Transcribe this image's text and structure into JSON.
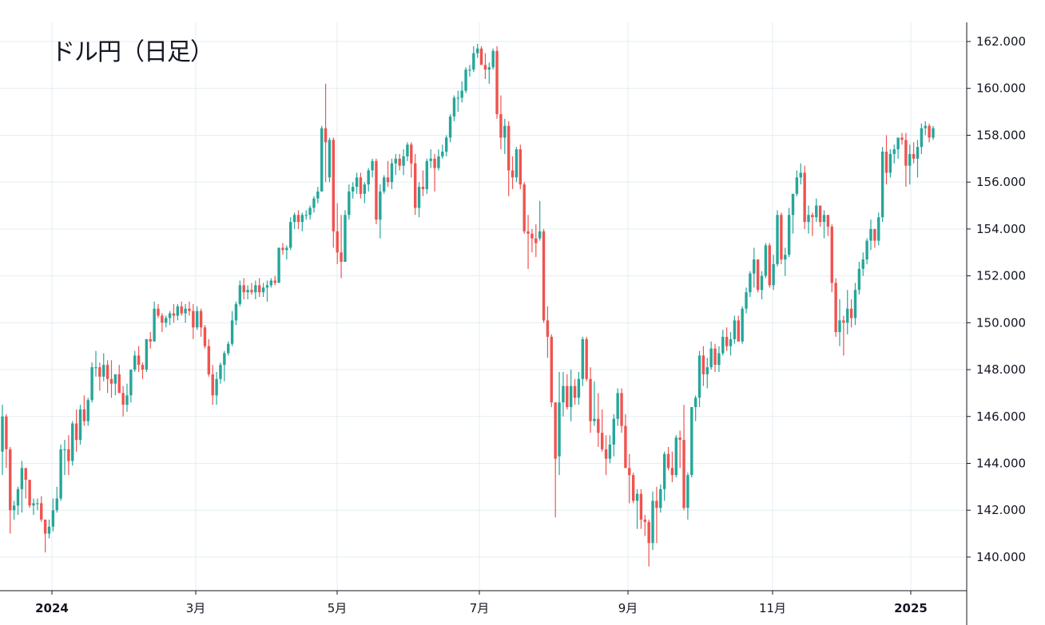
{
  "title": "ドル円（日足）",
  "colors": {
    "up": "#26a69a",
    "down": "#ef5350",
    "grid": "#e3eef2",
    "axis": "#131722"
  },
  "chart_data": {
    "type": "candlestick",
    "title": "ドル円（日足）",
    "ylim": [
      138.6,
      163.0
    ],
    "grid": true,
    "y_axis_position": "right",
    "y_ticks": [
      "140.000",
      "142.000",
      "144.000",
      "146.000",
      "148.000",
      "150.000",
      "152.000",
      "154.000",
      "156.000",
      "158.000",
      "160.000",
      "162.000"
    ],
    "x_ticks": [
      {
        "label": "2024",
        "bold": true
      },
      {
        "label": "3月",
        "bold": false
      },
      {
        "label": "5月",
        "bold": false
      },
      {
        "label": "7月",
        "bold": false
      },
      {
        "label": "9月",
        "bold": false
      },
      {
        "label": "11月",
        "bold": false
      },
      {
        "label": "2025",
        "bold": true
      }
    ],
    "ohlc_fields": [
      "open",
      "high",
      "low",
      "close"
    ],
    "ohlc": [
      [
        144.5,
        146.5,
        143.5,
        146.0
      ],
      [
        146.0,
        146.1,
        143.8,
        144.6
      ],
      [
        144.6,
        144.7,
        141.0,
        142.0
      ],
      [
        142.0,
        142.4,
        141.6,
        142.2
      ],
      [
        142.2,
        143.0,
        141.8,
        142.9
      ],
      [
        142.9,
        144.1,
        141.9,
        143.8
      ],
      [
        143.8,
        143.8,
        142.5,
        143.3
      ],
      [
        143.3,
        143.3,
        142.1,
        142.2
      ],
      [
        142.2,
        142.5,
        141.8,
        142.3
      ],
      [
        142.3,
        142.5,
        142.0,
        142.3
      ],
      [
        142.3,
        142.6,
        141.5,
        141.6
      ],
      [
        141.6,
        141.6,
        140.2,
        141.0
      ],
      [
        141.0,
        141.6,
        140.8,
        141.3
      ],
      [
        141.3,
        142.5,
        141.1,
        142.0
      ],
      [
        142.0,
        143.0,
        141.9,
        142.5
      ],
      [
        142.5,
        144.8,
        142.4,
        144.6
      ],
      [
        144.6,
        145.0,
        143.5,
        144.6
      ],
      [
        144.6,
        145.2,
        143.5,
        144.1
      ],
      [
        144.1,
        145.8,
        143.9,
        145.7
      ],
      [
        145.7,
        146.3,
        144.5,
        145.0
      ],
      [
        145.0,
        146.5,
        144.8,
        146.3
      ],
      [
        146.3,
        146.9,
        145.6,
        145.8
      ],
      [
        145.8,
        146.8,
        145.6,
        146.7
      ],
      [
        146.7,
        148.3,
        146.6,
        148.1
      ],
      [
        148.1,
        148.8,
        147.7,
        148.1
      ],
      [
        148.1,
        148.3,
        147.1,
        147.7
      ],
      [
        147.7,
        148.7,
        147.5,
        148.2
      ],
      [
        148.2,
        148.4,
        147.0,
        147.6
      ],
      [
        147.6,
        148.4,
        146.8,
        147.4
      ],
      [
        147.4,
        147.8,
        146.9,
        147.8
      ],
      [
        147.8,
        148.2,
        147.0,
        147.0
      ],
      [
        147.0,
        147.3,
        146.0,
        146.5
      ],
      [
        146.5,
        147.4,
        146.2,
        146.9
      ],
      [
        146.9,
        148.0,
        146.6,
        148.0
      ],
      [
        148.0,
        148.8,
        147.9,
        148.6
      ],
      [
        148.6,
        149.0,
        147.9,
        148.2
      ],
      [
        148.2,
        148.3,
        147.6,
        148.0
      ],
      [
        148.0,
        149.3,
        147.9,
        149.3
      ],
      [
        149.3,
        149.6,
        148.9,
        149.2
      ],
      [
        149.2,
        150.9,
        149.2,
        150.6
      ],
      [
        150.6,
        150.8,
        150.2,
        150.3
      ],
      [
        150.3,
        150.4,
        149.6,
        150.0
      ],
      [
        150.0,
        150.3,
        149.8,
        150.2
      ],
      [
        150.2,
        150.5,
        149.9,
        150.4
      ],
      [
        150.4,
        150.8,
        150.0,
        150.3
      ],
      [
        150.3,
        150.8,
        150.1,
        150.7
      ],
      [
        150.7,
        150.9,
        150.3,
        150.4
      ],
      [
        150.4,
        150.8,
        150.0,
        150.6
      ],
      [
        150.6,
        150.9,
        150.3,
        150.5
      ],
      [
        150.5,
        150.8,
        149.3,
        149.8
      ],
      [
        149.8,
        150.7,
        149.7,
        150.5
      ],
      [
        150.5,
        150.6,
        149.4,
        149.8
      ],
      [
        149.8,
        149.9,
        148.9,
        149.0
      ],
      [
        149.0,
        149.3,
        147.7,
        147.8
      ],
      [
        147.8,
        148.2,
        146.5,
        146.9
      ],
      [
        146.9,
        147.9,
        146.5,
        147.6
      ],
      [
        147.6,
        148.3,
        147.4,
        148.2
      ],
      [
        148.2,
        148.8,
        147.5,
        148.7
      ],
      [
        148.7,
        149.2,
        148.6,
        149.1
      ],
      [
        149.1,
        150.5,
        149.0,
        150.1
      ],
      [
        150.1,
        150.9,
        149.9,
        150.8
      ],
      [
        150.8,
        151.8,
        150.7,
        151.6
      ],
      [
        151.6,
        151.9,
        151.0,
        151.3
      ],
      [
        151.3,
        151.6,
        151.0,
        151.4
      ],
      [
        151.4,
        151.7,
        151.2,
        151.3
      ],
      [
        151.3,
        151.8,
        151.0,
        151.6
      ],
      [
        151.6,
        151.9,
        151.1,
        151.3
      ],
      [
        151.3,
        151.7,
        151.1,
        151.5
      ],
      [
        151.5,
        151.8,
        150.9,
        151.6
      ],
      [
        151.6,
        151.9,
        151.5,
        151.8
      ],
      [
        151.8,
        152.0,
        151.6,
        151.7
      ],
      [
        151.7,
        153.2,
        151.7,
        153.2
      ],
      [
        153.2,
        153.4,
        152.9,
        153.1
      ],
      [
        153.1,
        153.3,
        152.7,
        153.2
      ],
      [
        153.2,
        154.5,
        153.1,
        154.3
      ],
      [
        154.3,
        154.7,
        154.0,
        154.6
      ],
      [
        154.6,
        154.8,
        154.0,
        154.3
      ],
      [
        154.3,
        154.7,
        153.9,
        154.6
      ],
      [
        154.6,
        154.8,
        154.4,
        154.6
      ],
      [
        154.6,
        155.0,
        154.4,
        154.9
      ],
      [
        154.9,
        155.4,
        154.7,
        155.3
      ],
      [
        155.3,
        155.8,
        155.1,
        155.6
      ],
      [
        155.6,
        158.4,
        155.6,
        158.3
      ],
      [
        158.3,
        160.2,
        156.0,
        157.7
      ],
      [
        156.2,
        157.9,
        156.0,
        157.8
      ],
      [
        157.8,
        157.9,
        153.2,
        153.9
      ],
      [
        153.9,
        155.1,
        152.5,
        153.0
      ],
      [
        153.0,
        154.6,
        151.9,
        152.6
      ],
      [
        152.6,
        154.8,
        152.6,
        154.6
      ],
      [
        154.6,
        155.9,
        154.4,
        155.6
      ],
      [
        155.6,
        156.0,
        155.3,
        155.8
      ],
      [
        155.8,
        156.4,
        155.5,
        156.2
      ],
      [
        156.2,
        156.4,
        155.3,
        155.5
      ],
      [
        155.5,
        156.0,
        155.1,
        155.9
      ],
      [
        155.9,
        156.6,
        155.6,
        156.5
      ],
      [
        156.5,
        157.0,
        156.2,
        156.9
      ],
      [
        156.9,
        157.0,
        154.2,
        154.4
      ],
      [
        154.4,
        155.9,
        153.6,
        155.6
      ],
      [
        155.6,
        156.3,
        155.5,
        156.2
      ],
      [
        156.2,
        156.9,
        155.8,
        156.0
      ],
      [
        156.0,
        157.0,
        155.7,
        156.8
      ],
      [
        156.8,
        157.2,
        156.3,
        157.0
      ],
      [
        157.0,
        157.2,
        156.5,
        156.7
      ],
      [
        156.7,
        157.4,
        156.3,
        157.1
      ],
      [
        157.1,
        157.7,
        156.9,
        157.6
      ],
      [
        157.6,
        157.7,
        156.2,
        156.8
      ],
      [
        156.8,
        157.2,
        154.6,
        154.9
      ],
      [
        154.9,
        156.0,
        154.5,
        155.8
      ],
      [
        155.8,
        156.5,
        155.4,
        155.7
      ],
      [
        155.7,
        157.0,
        155.5,
        156.9
      ],
      [
        156.9,
        157.4,
        156.6,
        157.0
      ],
      [
        157.0,
        157.2,
        155.6,
        156.6
      ],
      [
        156.6,
        157.4,
        156.5,
        157.1
      ],
      [
        157.1,
        157.6,
        157.0,
        157.3
      ],
      [
        157.3,
        158.0,
        157.1,
        157.9
      ],
      [
        157.9,
        158.9,
        157.7,
        158.8
      ],
      [
        158.8,
        159.7,
        158.6,
        159.6
      ],
      [
        159.6,
        159.9,
        159.0,
        159.6
      ],
      [
        159.6,
        160.3,
        159.4,
        159.9
      ],
      [
        159.9,
        160.9,
        159.8,
        160.8
      ],
      [
        160.8,
        161.0,
        160.5,
        160.8
      ],
      [
        160.8,
        161.8,
        160.7,
        161.5
      ],
      [
        161.5,
        161.9,
        161.3,
        161.7
      ],
      [
        161.7,
        161.8,
        161.0,
        161.0
      ],
      [
        161.0,
        161.5,
        160.4,
        160.8
      ],
      [
        160.8,
        161.1,
        160.2,
        160.9
      ],
      [
        160.9,
        161.7,
        160.8,
        161.6
      ],
      [
        161.6,
        161.8,
        158.7,
        158.9
      ],
      [
        158.9,
        159.7,
        157.4,
        157.9
      ],
      [
        157.9,
        158.7,
        157.2,
        158.4
      ],
      [
        158.4,
        158.6,
        155.4,
        156.5
      ],
      [
        156.5,
        157.1,
        155.7,
        156.2
      ],
      [
        156.2,
        157.5,
        156.0,
        157.4
      ],
      [
        157.4,
        157.6,
        155.7,
        155.9
      ],
      [
        155.9,
        156.0,
        153.8,
        153.9
      ],
      [
        153.9,
        154.6,
        152.3,
        153.8
      ],
      [
        153.8,
        154.0,
        153.0,
        153.6
      ],
      [
        153.6,
        154.2,
        152.8,
        153.4
      ],
      [
        153.6,
        155.2,
        153.5,
        153.9
      ],
      [
        153.9,
        154.0,
        150.0,
        150.1
      ],
      [
        150.1,
        150.7,
        148.5,
        149.4
      ],
      [
        149.4,
        149.5,
        146.4,
        146.6
      ],
      [
        146.6,
        146.6,
        141.7,
        144.2
      ],
      [
        144.3,
        147.9,
        143.5,
        146.6
      ],
      [
        146.6,
        147.9,
        146.0,
        147.3
      ],
      [
        147.3,
        147.8,
        146.3,
        146.4
      ],
      [
        146.4,
        148.0,
        145.8,
        147.3
      ],
      [
        147.3,
        147.6,
        146.5,
        146.8
      ],
      [
        146.8,
        147.9,
        146.5,
        147.6
      ],
      [
        147.6,
        149.4,
        147.3,
        149.3
      ],
      [
        149.3,
        149.4,
        147.5,
        147.6
      ],
      [
        147.6,
        148.1,
        145.3,
        145.8
      ],
      [
        145.8,
        147.5,
        145.6,
        145.9
      ],
      [
        145.9,
        147.0,
        144.7,
        145.3
      ],
      [
        145.3,
        146.3,
        144.5,
        144.6
      ],
      [
        144.6,
        145.2,
        143.5,
        144.2
      ],
      [
        144.2,
        145.2,
        144.0,
        144.8
      ],
      [
        144.8,
        146.1,
        144.3,
        145.9
      ],
      [
        145.9,
        147.2,
        145.6,
        147.0
      ],
      [
        147.0,
        147.2,
        145.3,
        145.6
      ],
      [
        145.6,
        146.1,
        143.8,
        143.8
      ],
      [
        143.8,
        144.4,
        142.3,
        143.5
      ],
      [
        143.5,
        143.6,
        142.3,
        142.4
      ],
      [
        142.4,
        142.9,
        141.2,
        142.7
      ],
      [
        142.7,
        142.9,
        141.2,
        141.6
      ],
      [
        141.6,
        141.8,
        140.9,
        141.5
      ],
      [
        141.5,
        141.6,
        139.6,
        140.6
      ],
      [
        140.6,
        142.8,
        140.3,
        142.4
      ],
      [
        142.4,
        143.0,
        140.6,
        142.1
      ],
      [
        142.1,
        143.1,
        141.9,
        142.9
      ],
      [
        142.9,
        144.5,
        142.4,
        144.4
      ],
      [
        144.4,
        144.7,
        143.7,
        143.8
      ],
      [
        143.8,
        144.5,
        143.2,
        143.5
      ],
      [
        143.5,
        145.2,
        143.4,
        145.1
      ],
      [
        145.1,
        145.4,
        143.8,
        145.0
      ],
      [
        145.0,
        146.5,
        142.0,
        142.1
      ],
      [
        142.1,
        143.6,
        141.6,
        143.5
      ],
      [
        143.5,
        146.4,
        143.4,
        146.4
      ],
      [
        146.4,
        146.9,
        145.8,
        146.8
      ],
      [
        146.8,
        148.8,
        146.4,
        148.6
      ],
      [
        148.6,
        149.0,
        147.3,
        147.8
      ],
      [
        147.8,
        148.5,
        147.2,
        148.1
      ],
      [
        148.1,
        149.2,
        148.0,
        148.9
      ],
      [
        148.9,
        149.1,
        147.9,
        148.2
      ],
      [
        148.2,
        149.0,
        147.9,
        148.7
      ],
      [
        148.7,
        149.7,
        148.6,
        149.4
      ],
      [
        149.4,
        149.8,
        148.8,
        149.0
      ],
      [
        149.0,
        149.6,
        148.6,
        149.3
      ],
      [
        149.3,
        150.3,
        149.1,
        150.1
      ],
      [
        150.1,
        150.3,
        149.2,
        149.2
      ],
      [
        149.2,
        150.7,
        149.1,
        150.6
      ],
      [
        150.6,
        151.5,
        150.4,
        151.3
      ],
      [
        151.3,
        152.2,
        151.1,
        152.1
      ],
      [
        152.1,
        153.2,
        151.5,
        152.7
      ],
      [
        152.7,
        152.7,
        151.3,
        151.4
      ],
      [
        151.4,
        152.2,
        151.0,
        152.0
      ],
      [
        152.0,
        153.4,
        151.9,
        153.3
      ],
      [
        153.3,
        153.4,
        151.5,
        151.6
      ],
      [
        151.6,
        152.9,
        151.4,
        152.5
      ],
      [
        152.5,
        154.8,
        152.4,
        154.6
      ],
      [
        154.6,
        154.7,
        152.5,
        152.7
      ],
      [
        152.7,
        153.2,
        152.0,
        152.9
      ],
      [
        152.9,
        154.9,
        152.8,
        154.6
      ],
      [
        154.6,
        155.5,
        153.8,
        155.5
      ],
      [
        155.5,
        156.5,
        155.4,
        156.2
      ],
      [
        156.2,
        156.8,
        155.9,
        156.4
      ],
      [
        156.4,
        156.7,
        154.0,
        154.3
      ],
      [
        154.3,
        155.0,
        153.8,
        154.6
      ],
      [
        154.6,
        154.7,
        153.7,
        154.5
      ],
      [
        154.5,
        155.3,
        154.3,
        155.0
      ],
      [
        155.0,
        155.0,
        154.1,
        154.3
      ],
      [
        154.3,
        154.8,
        153.6,
        154.6
      ],
      [
        154.6,
        154.6,
        153.7,
        154.1
      ],
      [
        154.1,
        154.2,
        151.3,
        151.7
      ],
      [
        151.7,
        151.9,
        149.4,
        149.6
      ],
      [
        149.6,
        151.0,
        149.0,
        150.1
      ],
      [
        150.1,
        150.3,
        148.6,
        150.0
      ],
      [
        150.0,
        151.4,
        149.5,
        150.6
      ],
      [
        150.6,
        151.0,
        149.8,
        150.2
      ],
      [
        150.2,
        151.7,
        149.9,
        151.4
      ],
      [
        151.4,
        152.6,
        151.2,
        152.3
      ],
      [
        152.3,
        153.0,
        152.0,
        152.7
      ],
      [
        152.7,
        153.6,
        152.5,
        153.5
      ],
      [
        153.5,
        154.4,
        153.1,
        154.0
      ],
      [
        154.0,
        154.0,
        153.2,
        153.5
      ],
      [
        153.5,
        154.7,
        153.3,
        154.5
      ],
      [
        154.5,
        157.5,
        154.3,
        157.3
      ],
      [
        157.3,
        158.0,
        155.9,
        156.4
      ],
      [
        156.4,
        157.4,
        156.2,
        157.2
      ],
      [
        157.2,
        157.6,
        156.8,
        157.4
      ],
      [
        157.4,
        157.9,
        157.0,
        157.9
      ],
      [
        157.9,
        158.1,
        157.6,
        157.8
      ],
      [
        157.8,
        158.1,
        155.8,
        156.7
      ],
      [
        156.7,
        157.6,
        155.9,
        157.2
      ],
      [
        157.2,
        157.7,
        156.8,
        157.0
      ],
      [
        157.0,
        157.8,
        156.2,
        157.5
      ],
      [
        157.5,
        158.5,
        157.2,
        158.3
      ],
      [
        158.3,
        158.6,
        158.0,
        158.4
      ],
      [
        158.4,
        158.5,
        157.7,
        157.9
      ],
      [
        157.9,
        158.4,
        157.8,
        158.3
      ]
    ]
  }
}
